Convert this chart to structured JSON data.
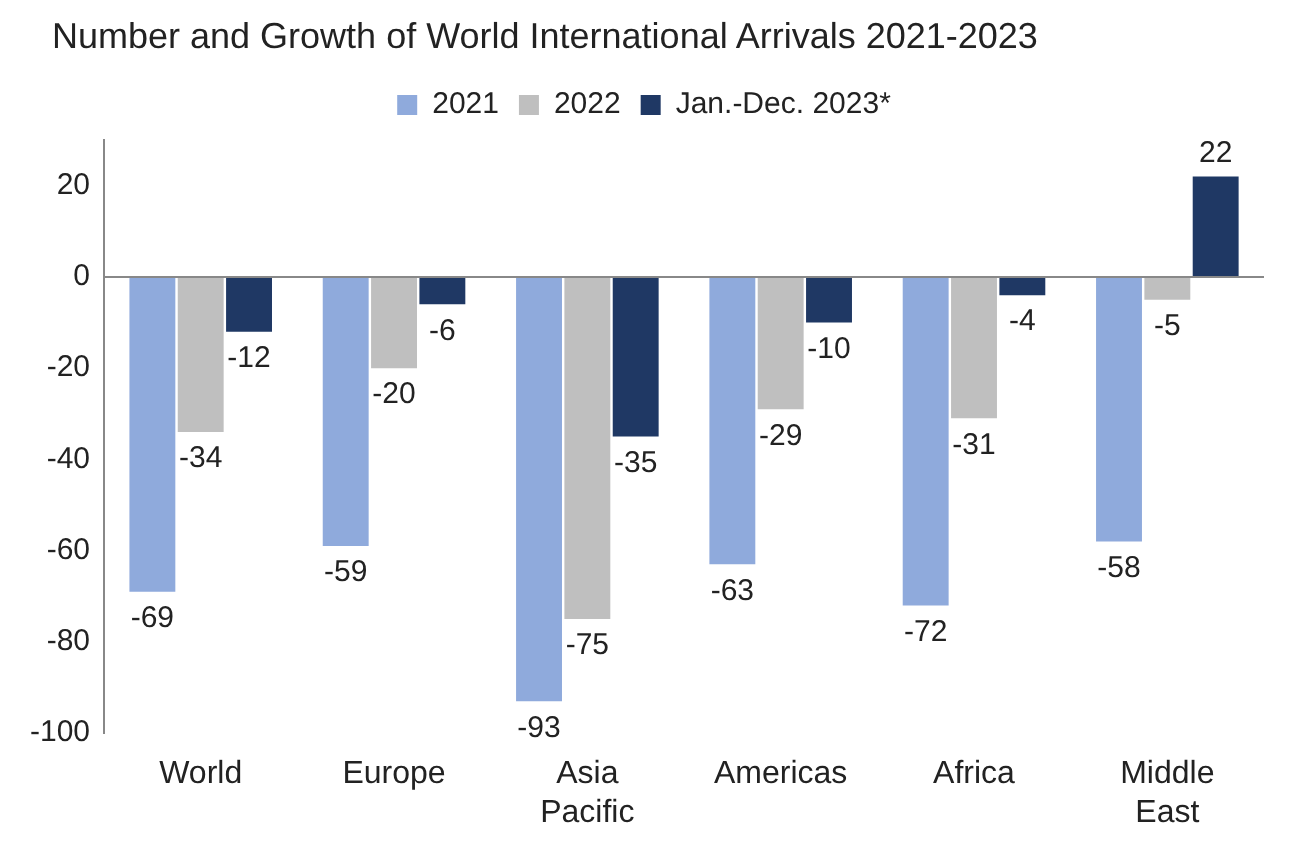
{
  "chart_data": {
    "type": "bar",
    "title": "Number and Growth of World International Arrivals 2021-2023",
    "categories": [
      "World",
      "Europe",
      "Asia Pacific",
      "Americas",
      "Africa",
      "Middle East"
    ],
    "series": [
      {
        "name": "2021",
        "color": "#8faadc",
        "values": [
          -69,
          -59,
          -93,
          -63,
          -72,
          -58
        ]
      },
      {
        "name": "2022",
        "color": "#bfbfbf",
        "values": [
          -34,
          -20,
          -75,
          -29,
          -31,
          -5
        ]
      },
      {
        "name": "Jan.-Dec. 2023*",
        "color": "#1f3864",
        "values": [
          -12,
          -6,
          -35,
          -10,
          -4,
          22
        ]
      }
    ],
    "ylim": [
      -100,
      30
    ],
    "yticks": [
      -100,
      -80,
      -60,
      -40,
      -20,
      0,
      20
    ],
    "ref_lines": [
      {
        "axis": "y",
        "value": 0,
        "color": "#888888"
      }
    ],
    "grid": false,
    "legend": "top",
    "data_labels": true
  }
}
